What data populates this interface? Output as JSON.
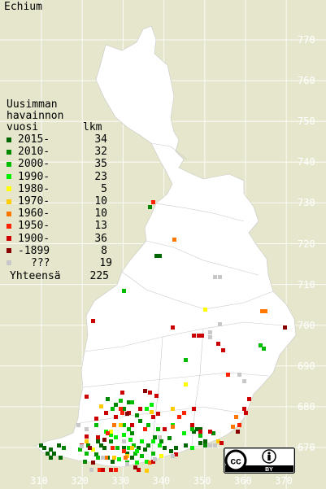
{
  "title": "Echium",
  "legend": {
    "heading_line1": "Uusimman",
    "heading_line2": "havainnon",
    "year_header": "vuosi",
    "count_header": "lkm",
    "items": [
      {
        "label": "2015-",
        "count": "34",
        "color": "#006600"
      },
      {
        "label": "2010-",
        "count": "32",
        "color": "#008800"
      },
      {
        "label": "2000-",
        "count": "35",
        "color": "#00bb00"
      },
      {
        "label": "1990-",
        "count": "23",
        "color": "#00ee00"
      },
      {
        "label": "1980-",
        "count": "5",
        "color": "#ffff00"
      },
      {
        "label": "1970-",
        "count": "10",
        "color": "#ffcc00"
      },
      {
        "label": "1960-",
        "count": "10",
        "color": "#ff7700"
      },
      {
        "label": "1950-",
        "count": "13",
        "color": "#ff2200"
      },
      {
        "label": "1900-",
        "count": "36",
        "color": "#cc0000"
      },
      {
        "label": "-1899",
        "count": "8",
        "color": "#880000"
      },
      {
        "label": "???",
        "count": "19",
        "color": "#c8c8c8"
      }
    ],
    "total_label": "Yhteensä",
    "total_count": "225"
  },
  "axes": {
    "y_ticks": [
      "770",
      "760",
      "750",
      "740",
      "730",
      "720",
      "710",
      "700",
      "690",
      "680",
      "670"
    ],
    "x_ticks": [
      "310",
      "320",
      "330",
      "340",
      "350",
      "360",
      "370"
    ]
  },
  "license": {
    "text": "BY",
    "icon": "creative-commons-by-icon"
  }
}
